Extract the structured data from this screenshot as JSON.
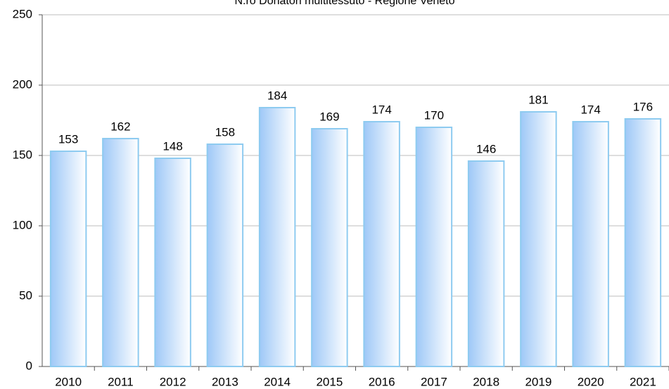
{
  "chart_data": {
    "type": "bar",
    "title": "N.ro Donatori multitessuto - Regione Veneto",
    "categories": [
      "2010",
      "2011",
      "2012",
      "2013",
      "2014",
      "2015",
      "2016",
      "2017",
      "2018",
      "2019",
      "2020",
      "2021"
    ],
    "values": [
      153,
      162,
      148,
      158,
      184,
      169,
      174,
      170,
      146,
      181,
      174,
      176
    ],
    "color": "#9ec8f7",
    "edgecolor": "#8ecbf0",
    "ylim": [
      0,
      250
    ],
    "yticks": [
      0,
      50,
      100,
      150,
      200,
      250
    ],
    "grid": true
  }
}
